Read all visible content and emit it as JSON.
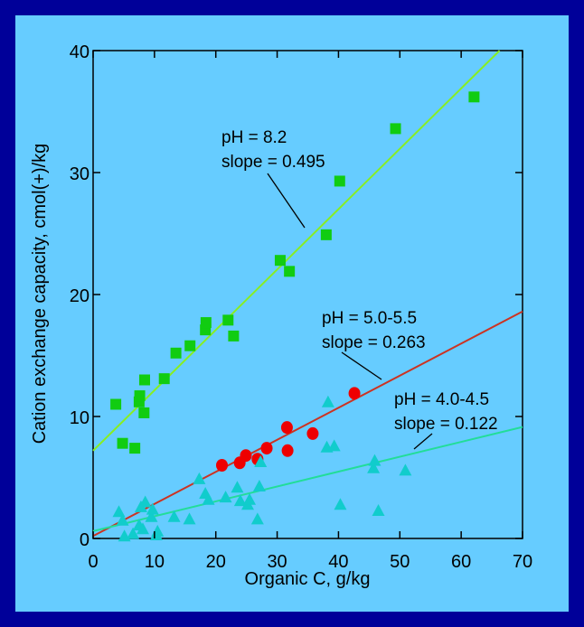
{
  "chart_data": {
    "type": "scatter",
    "title": "",
    "xlabel": "Organic C, g/kg",
    "ylabel": "Cation exchange capacity, cmol(+)/kg",
    "xlim": [
      0,
      70
    ],
    "ylim": [
      0,
      40
    ],
    "xticks": [
      0,
      10,
      20,
      30,
      40,
      50,
      60,
      70
    ],
    "yticks": [
      0,
      10,
      20,
      30,
      40
    ],
    "grid": false,
    "series": [
      {
        "label_lines": [
          "pH = 8.2",
          "slope = 0.495"
        ],
        "marker": "square",
        "color": "#11cc11",
        "line_color": "#88ee22",
        "intercept": 7.2,
        "slope": 0.495,
        "points": [
          [
            3.7,
            11
          ],
          [
            4.8,
            7.8
          ],
          [
            6.8,
            7.4
          ],
          [
            7.5,
            11.2
          ],
          [
            7.6,
            11.7
          ],
          [
            8.3,
            10.3
          ],
          [
            8.4,
            13
          ],
          [
            11.6,
            13.1
          ],
          [
            13.5,
            15.2
          ],
          [
            15.8,
            15.8
          ],
          [
            18.3,
            17.1
          ],
          [
            18.4,
            17.7
          ],
          [
            22,
            17.9
          ],
          [
            22.9,
            16.6
          ],
          [
            30.5,
            22.8
          ],
          [
            32,
            21.9
          ],
          [
            38,
            24.9
          ],
          [
            40.2,
            29.3
          ],
          [
            49.3,
            33.6
          ],
          [
            62.1,
            36.2
          ]
        ]
      },
      {
        "label_lines": [
          "pH = 5.0-5.5",
          "slope = 0.263"
        ],
        "marker": "circle",
        "color": "#ee0000",
        "line_color": "#cc3322",
        "intercept": 0.2,
        "slope": 0.263,
        "points": [
          [
            21,
            6
          ],
          [
            23.9,
            6.2
          ],
          [
            24.9,
            6.8
          ],
          [
            26.8,
            6.5
          ],
          [
            28.3,
            7.4
          ],
          [
            31.6,
            9.1
          ],
          [
            31.7,
            7.2
          ],
          [
            35.8,
            8.6
          ],
          [
            42.6,
            11.9
          ]
        ]
      },
      {
        "label_lines": [
          "pH = 4.0-4.5",
          "slope = 0.122"
        ],
        "marker": "triangle",
        "color": "#11cccc",
        "line_color": "#22dd99",
        "intercept": 0.6,
        "slope": 0.122,
        "points": [
          [
            4.2,
            2.2
          ],
          [
            4.8,
            1.5
          ],
          [
            5.1,
            0.2
          ],
          [
            6.5,
            0.4
          ],
          [
            7.5,
            1.1
          ],
          [
            7.8,
            2.6
          ],
          [
            8.1,
            0.8
          ],
          [
            8.5,
            3
          ],
          [
            9.5,
            1.8
          ],
          [
            9.7,
            2.4
          ],
          [
            10.3,
            0.3
          ],
          [
            10.5,
            0.6
          ],
          [
            13.2,
            1.8
          ],
          [
            15.7,
            1.6
          ],
          [
            17.3,
            4.9
          ],
          [
            18.3,
            3.7
          ],
          [
            18.8,
            3.2
          ],
          [
            21.6,
            3.4
          ],
          [
            23.5,
            4.2
          ],
          [
            24,
            3.1
          ],
          [
            25.2,
            2.8
          ],
          [
            25.5,
            3.2
          ],
          [
            26.8,
            1.6
          ],
          [
            27.1,
            4.3
          ],
          [
            27.3,
            6.3
          ],
          [
            38.1,
            7.5
          ],
          [
            38.3,
            11.2
          ],
          [
            39.3,
            7.6
          ],
          [
            40.3,
            2.8
          ],
          [
            45.7,
            5.8
          ],
          [
            45.9,
            6.4
          ],
          [
            46.5,
            2.3
          ],
          [
            50.9,
            5.6
          ]
        ]
      }
    ]
  }
}
